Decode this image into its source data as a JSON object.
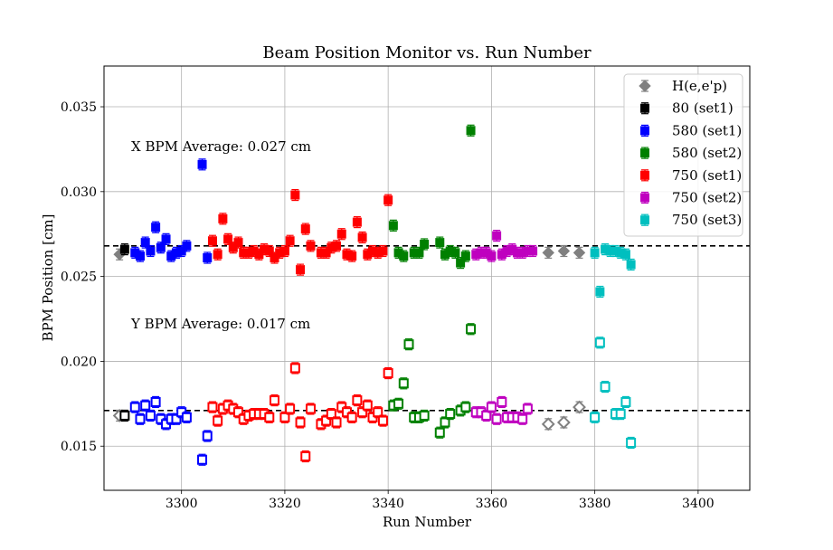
{
  "chart_data": {
    "type": "scatter",
    "title": "Beam Position Monitor vs. Run Number",
    "xlabel": "Run Number",
    "ylabel": "BPM Position [cm]",
    "xlim": [
      3285,
      3410
    ],
    "ylim": [
      0.0124,
      0.0374
    ],
    "xticks": [
      3300,
      3320,
      3340,
      3360,
      3380,
      3400
    ],
    "yticks": [
      0.015,
      0.02,
      0.025,
      0.03,
      0.035
    ],
    "xtick_labels": [
      "3300",
      "3320",
      "3340",
      "3360",
      "3380",
      "3400"
    ],
    "ytick_labels": [
      "0.015",
      "0.020",
      "0.025",
      "0.030",
      "0.035"
    ],
    "grid": true,
    "legend_position": "top-right",
    "annotations": [
      {
        "text": "X BPM Average: 0.027 cm",
        "x": 3290,
        "y": 0.0325
      },
      {
        "text": "Y BPM Average: 0.017 cm",
        "x": 3290,
        "y": 0.022
      }
    ],
    "reference_lines": [
      {
        "y": 0.0268,
        "style": "dashed",
        "color": "#000000"
      },
      {
        "y": 0.0171,
        "style": "dashed",
        "color": "#000000"
      }
    ],
    "series": [
      {
        "name": "H(e,e'p)",
        "marker": "diamond",
        "color": "#808080",
        "x_points": [
          [
            3288,
            0.0263
          ],
          [
            3371,
            0.0264
          ],
          [
            3374,
            0.0265
          ],
          [
            3377,
            0.0264
          ]
        ],
        "y_points": [
          [
            3288,
            0.0168
          ],
          [
            3371,
            0.0163
          ],
          [
            3374,
            0.0164
          ],
          [
            3377,
            0.0173
          ]
        ]
      },
      {
        "name": "80 (set1)",
        "marker": "square",
        "color": "#000000",
        "x_points": [
          [
            3289,
            0.0266
          ]
        ],
        "y_points": [
          [
            3289,
            0.0168
          ]
        ]
      },
      {
        "name": "580 (set1)",
        "marker": "square",
        "color": "#0000ff",
        "x_points": [
          [
            3291,
            0.0264
          ],
          [
            3292,
            0.0262
          ],
          [
            3293,
            0.027
          ],
          [
            3294,
            0.0265
          ],
          [
            3295,
            0.0279
          ],
          [
            3296,
            0.0267
          ],
          [
            3297,
            0.0272
          ],
          [
            3298,
            0.0262
          ],
          [
            3299,
            0.0264
          ],
          [
            3300,
            0.0265
          ],
          [
            3301,
            0.0268
          ],
          [
            3304,
            0.0316
          ],
          [
            3305,
            0.0261
          ]
        ],
        "y_points": [
          [
            3291,
            0.0173
          ],
          [
            3292,
            0.0166
          ],
          [
            3293,
            0.0174
          ],
          [
            3294,
            0.0168
          ],
          [
            3295,
            0.0176
          ],
          [
            3296,
            0.0166
          ],
          [
            3297,
            0.0163
          ],
          [
            3298,
            0.0166
          ],
          [
            3299,
            0.0166
          ],
          [
            3300,
            0.017
          ],
          [
            3301,
            0.0167
          ],
          [
            3304,
            0.0142
          ],
          [
            3305,
            0.0156
          ]
        ]
      },
      {
        "name": "580 (set2)",
        "marker": "square",
        "color": "#008000",
        "x_points": [
          [
            3341,
            0.028
          ],
          [
            3342,
            0.0264
          ],
          [
            3343,
            0.0262
          ],
          [
            3345,
            0.0264
          ],
          [
            3346,
            0.0264
          ],
          [
            3347,
            0.0269
          ],
          [
            3350,
            0.027
          ],
          [
            3351,
            0.0263
          ],
          [
            3352,
            0.0265
          ],
          [
            3353,
            0.0264
          ],
          [
            3354,
            0.0258
          ],
          [
            3355,
            0.0262
          ],
          [
            3356,
            0.0336
          ]
        ],
        "y_points": [
          [
            3341,
            0.0174
          ],
          [
            3342,
            0.0175
          ],
          [
            3343,
            0.0187
          ],
          [
            3344,
            0.021
          ],
          [
            3345,
            0.0167
          ],
          [
            3346,
            0.0167
          ],
          [
            3347,
            0.0168
          ],
          [
            3350,
            0.0158
          ],
          [
            3351,
            0.0164
          ],
          [
            3352,
            0.0169
          ],
          [
            3354,
            0.0171
          ],
          [
            3355,
            0.0173
          ],
          [
            3356,
            0.0219
          ]
        ]
      },
      {
        "name": "750 (set1)",
        "marker": "square",
        "color": "#ff0000",
        "x_points": [
          [
            3306,
            0.0271
          ],
          [
            3307,
            0.0263
          ],
          [
            3308,
            0.0284
          ],
          [
            3309,
            0.0272
          ],
          [
            3310,
            0.0267
          ],
          [
            3311,
            0.027
          ],
          [
            3312,
            0.0264
          ],
          [
            3313,
            0.0264
          ],
          [
            3314,
            0.0265
          ],
          [
            3315,
            0.0263
          ],
          [
            3316,
            0.0266
          ],
          [
            3317,
            0.0265
          ],
          [
            3318,
            0.0261
          ],
          [
            3319,
            0.0264
          ],
          [
            3320,
            0.0265
          ],
          [
            3321,
            0.0271
          ],
          [
            3322,
            0.0298
          ],
          [
            3323,
            0.0254
          ],
          [
            3324,
            0.0278
          ],
          [
            3325,
            0.0268
          ],
          [
            3327,
            0.0264
          ],
          [
            3328,
            0.0264
          ],
          [
            3329,
            0.0267
          ],
          [
            3330,
            0.0268
          ],
          [
            3331,
            0.0275
          ],
          [
            3332,
            0.0263
          ],
          [
            3333,
            0.0262
          ],
          [
            3334,
            0.0282
          ],
          [
            3335,
            0.0273
          ],
          [
            3336,
            0.0263
          ],
          [
            3337,
            0.0265
          ],
          [
            3338,
            0.0264
          ],
          [
            3339,
            0.0265
          ],
          [
            3340,
            0.0295
          ]
        ],
        "y_points": [
          [
            3306,
            0.0173
          ],
          [
            3307,
            0.0165
          ],
          [
            3308,
            0.0172
          ],
          [
            3309,
            0.0174
          ],
          [
            3310,
            0.0172
          ],
          [
            3311,
            0.017
          ],
          [
            3312,
            0.0166
          ],
          [
            3313,
            0.0168
          ],
          [
            3314,
            0.0169
          ],
          [
            3315,
            0.0169
          ],
          [
            3316,
            0.0169
          ],
          [
            3317,
            0.0167
          ],
          [
            3318,
            0.0177
          ],
          [
            3320,
            0.0167
          ],
          [
            3321,
            0.0172
          ],
          [
            3322,
            0.0196
          ],
          [
            3323,
            0.0164
          ],
          [
            3324,
            0.0144
          ],
          [
            3325,
            0.0172
          ],
          [
            3327,
            0.0163
          ],
          [
            3328,
            0.0165
          ],
          [
            3329,
            0.0169
          ],
          [
            3330,
            0.0164
          ],
          [
            3331,
            0.0173
          ],
          [
            3332,
            0.017
          ],
          [
            3333,
            0.0167
          ],
          [
            3334,
            0.0177
          ],
          [
            3335,
            0.017
          ],
          [
            3336,
            0.0174
          ],
          [
            3337,
            0.0167
          ],
          [
            3338,
            0.017
          ],
          [
            3339,
            0.0165
          ],
          [
            3340,
            0.0193
          ]
        ]
      },
      {
        "name": "750 (set2)",
        "marker": "square",
        "color": "#bf00bf",
        "x_points": [
          [
            3357,
            0.0263
          ],
          [
            3358,
            0.0264
          ],
          [
            3359,
            0.0264
          ],
          [
            3360,
            0.0262
          ],
          [
            3361,
            0.0274
          ],
          [
            3362,
            0.0263
          ],
          [
            3363,
            0.0265
          ],
          [
            3364,
            0.0266
          ],
          [
            3365,
            0.0264
          ],
          [
            3366,
            0.0264
          ],
          [
            3367,
            0.0265
          ],
          [
            3368,
            0.0265
          ]
        ],
        "y_points": [
          [
            3357,
            0.017
          ],
          [
            3358,
            0.017
          ],
          [
            3359,
            0.0168
          ],
          [
            3360,
            0.0173
          ],
          [
            3361,
            0.0166
          ],
          [
            3362,
            0.0176
          ],
          [
            3363,
            0.0167
          ],
          [
            3364,
            0.0167
          ],
          [
            3365,
            0.0167
          ],
          [
            3366,
            0.0166
          ],
          [
            3367,
            0.0172
          ]
        ]
      },
      {
        "name": "750 (set3)",
        "marker": "square",
        "color": "#00bfbf",
        "x_points": [
          [
            3380,
            0.0264
          ],
          [
            3381,
            0.0241
          ],
          [
            3382,
            0.0266
          ],
          [
            3383,
            0.0265
          ],
          [
            3384,
            0.0265
          ],
          [
            3385,
            0.0264
          ],
          [
            3386,
            0.0263
          ],
          [
            3387,
            0.0257
          ]
        ],
        "y_points": [
          [
            3380,
            0.0167
          ],
          [
            3381,
            0.0211
          ],
          [
            3382,
            0.0185
          ],
          [
            3384,
            0.0169
          ],
          [
            3385,
            0.0169
          ],
          [
            3386,
            0.0176
          ],
          [
            3387,
            0.0152
          ]
        ]
      }
    ]
  }
}
